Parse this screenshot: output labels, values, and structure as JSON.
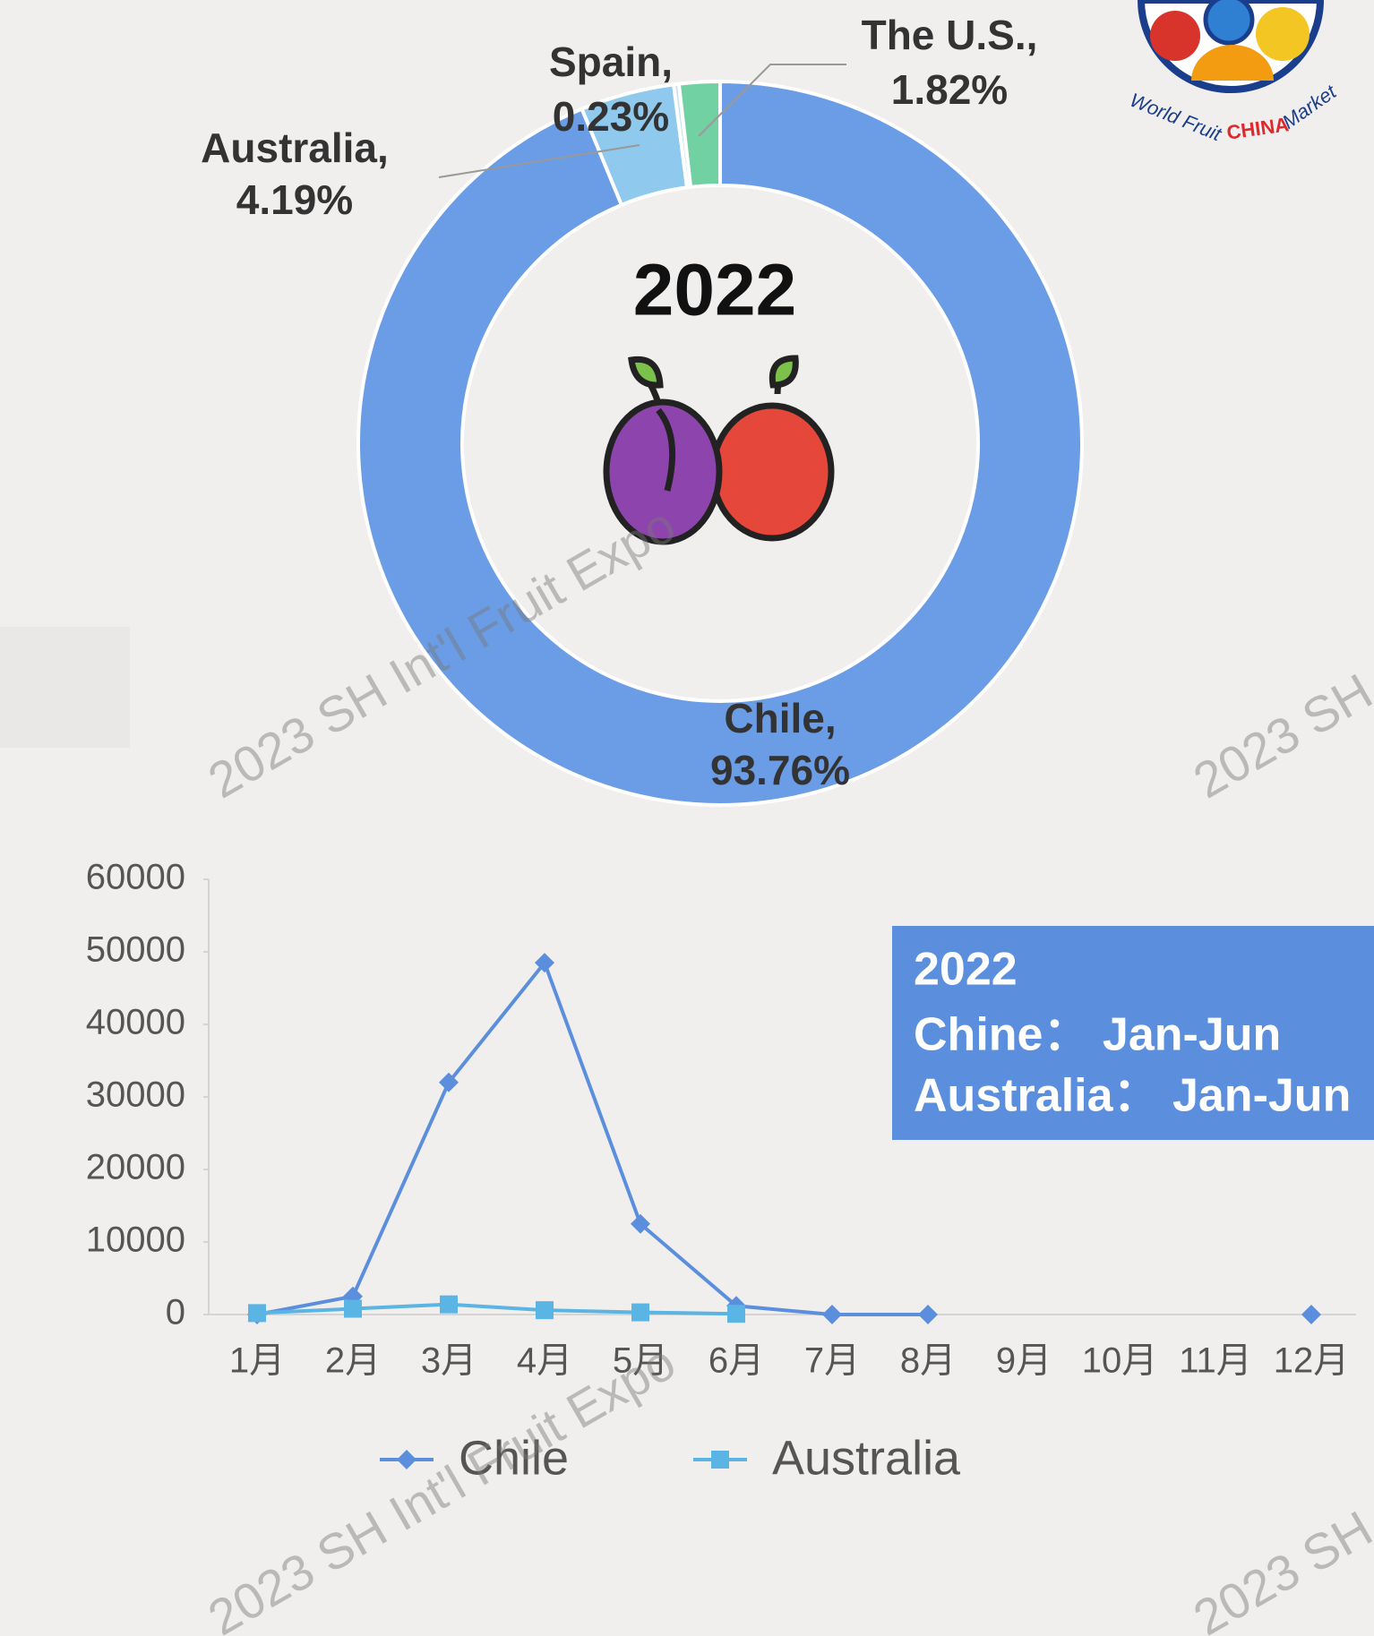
{
  "chart_data": [
    {
      "type": "donut",
      "center_label": "2022",
      "categories": [
        "Chile,",
        "Australia,",
        "Spain,",
        "The U.S.,"
      ],
      "values": [
        93.76,
        4.19,
        0.23,
        1.82
      ],
      "value_labels": [
        "93.76%",
        "4.19%",
        "0.23%",
        "1.82%"
      ],
      "colors": [
        "#6b9de6",
        "#8fcaee",
        "#c4e2f4",
        "#72d1a2"
      ]
    },
    {
      "type": "line",
      "categories": [
        "1月",
        "2月",
        "3月",
        "4月",
        "5月",
        "6月",
        "7月",
        "8月",
        "9月",
        "10月",
        "11月",
        "12月"
      ],
      "series": [
        {
          "name": "Chile",
          "color": "#5b8fde",
          "marker": "diamond",
          "values": [
            0,
            2500,
            32000,
            48500,
            12500,
            1200,
            0,
            0,
            null,
            null,
            null,
            0
          ]
        },
        {
          "name": "Australia",
          "color": "#5ab4e4",
          "marker": "square",
          "values": [
            200,
            800,
            1400,
            600,
            300,
            100,
            null,
            null,
            null,
            null,
            null,
            null
          ]
        }
      ],
      "ylim": [
        0,
        60000
      ],
      "yticks": [
        0,
        10000,
        20000,
        30000,
        40000,
        50000,
        60000
      ],
      "grid": false,
      "annotations": [
        "2022",
        "Chine：  Jan-Jun",
        "Australia：  Jan-Jun"
      ]
    }
  ],
  "logo": {
    "text": "World Fruit",
    "highlight": "CHINA",
    "tail": "Market"
  },
  "watermark": "2023 SH Int'l Fruit Expo"
}
